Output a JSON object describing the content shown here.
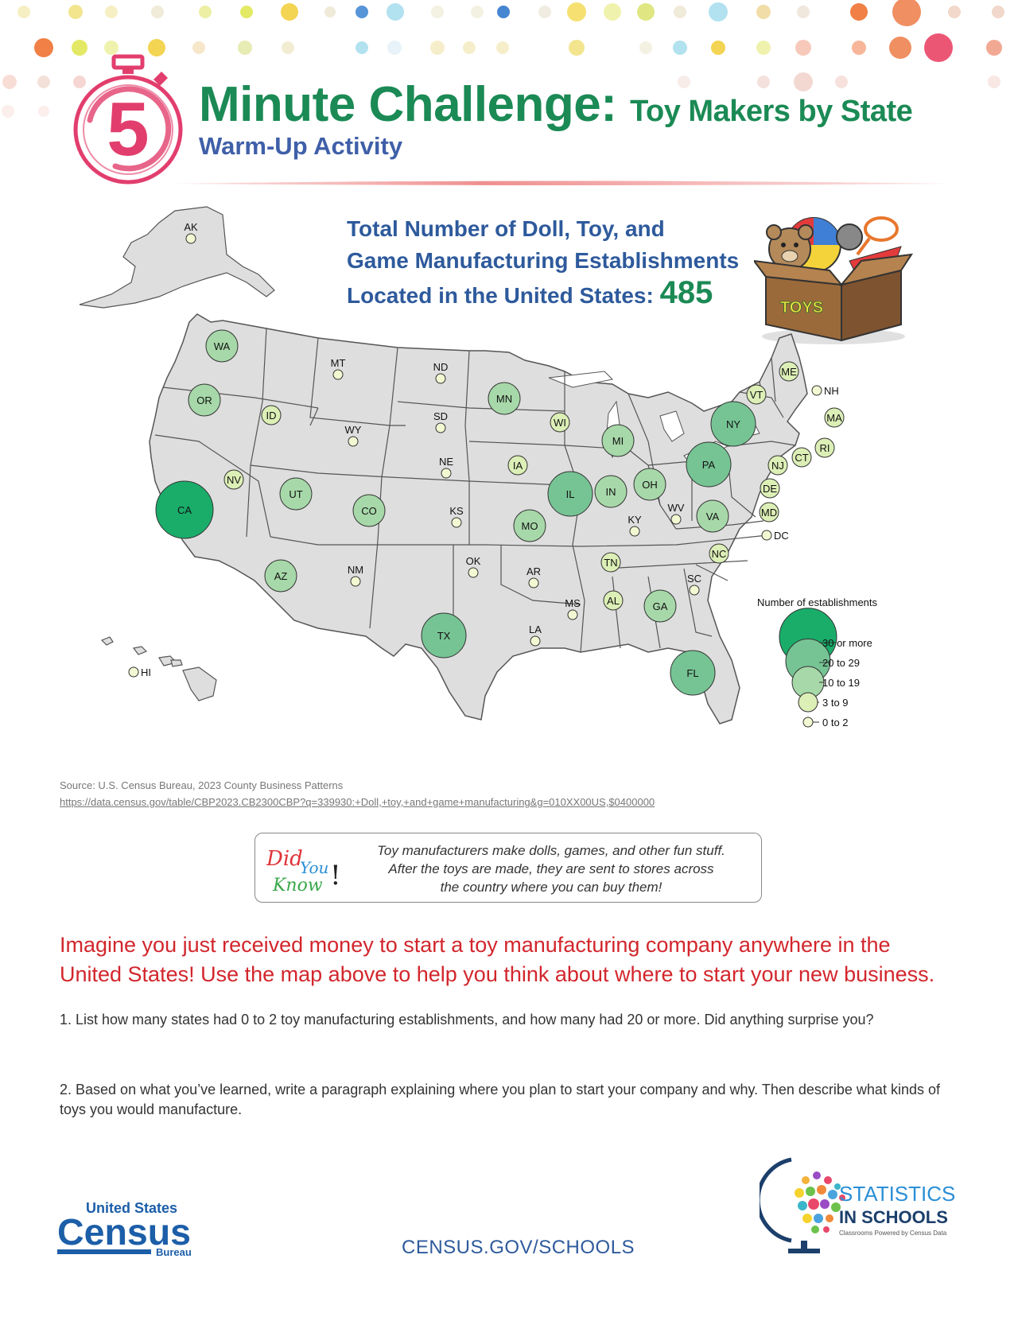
{
  "header": {
    "timer_number": "5",
    "title_main": "Minute Challenge:",
    "title_sub": "Toy Makers by State",
    "subtitle": "Warm-Up Activity"
  },
  "headline": {
    "line1": "Total Number of Doll, Toy, and",
    "line2": "Game Manufacturing Establishments",
    "line3": "Located in the United States:",
    "total": "485"
  },
  "toybox_label": "TOYS",
  "legend": {
    "title": "Number of establishments",
    "items": [
      "30 or more",
      "20 to 29",
      "10 to 19",
      "3 to 9",
      "0 to 2"
    ]
  },
  "colors": {
    "c30": "#1aad6a",
    "c20": "#76c494",
    "c10": "#a7d8a9",
    "c3": "#dcefb6",
    "c0": "#f2f9d2",
    "land": "#dedede",
    "title_green": "#1b8a55",
    "title_blue": "#3f5fa8",
    "red": "#d2262c"
  },
  "states": [
    {
      "id": "AK",
      "cls": "c0"
    },
    {
      "id": "HI",
      "cls": "c0"
    },
    {
      "id": "WA",
      "cls": "c10"
    },
    {
      "id": "OR",
      "cls": "c10"
    },
    {
      "id": "CA",
      "cls": "c30"
    },
    {
      "id": "NV",
      "cls": "c3"
    },
    {
      "id": "ID",
      "cls": "c3"
    },
    {
      "id": "MT",
      "cls": "c0"
    },
    {
      "id": "WY",
      "cls": "c0"
    },
    {
      "id": "UT",
      "cls": "c10"
    },
    {
      "id": "CO",
      "cls": "c10"
    },
    {
      "id": "AZ",
      "cls": "c10"
    },
    {
      "id": "NM",
      "cls": "c0"
    },
    {
      "id": "ND",
      "cls": "c0"
    },
    {
      "id": "SD",
      "cls": "c0"
    },
    {
      "id": "NE",
      "cls": "c0"
    },
    {
      "id": "KS",
      "cls": "c0"
    },
    {
      "id": "OK",
      "cls": "c0"
    },
    {
      "id": "TX",
      "cls": "c20"
    },
    {
      "id": "MN",
      "cls": "c10"
    },
    {
      "id": "IA",
      "cls": "c3"
    },
    {
      "id": "MO",
      "cls": "c10"
    },
    {
      "id": "AR",
      "cls": "c0"
    },
    {
      "id": "LA",
      "cls": "c0"
    },
    {
      "id": "WI",
      "cls": "c3"
    },
    {
      "id": "IL",
      "cls": "c20"
    },
    {
      "id": "MI",
      "cls": "c10"
    },
    {
      "id": "IN",
      "cls": "c10"
    },
    {
      "id": "OH",
      "cls": "c10"
    },
    {
      "id": "KY",
      "cls": "c0"
    },
    {
      "id": "TN",
      "cls": "c3"
    },
    {
      "id": "MS",
      "cls": "c0"
    },
    {
      "id": "AL",
      "cls": "c3"
    },
    {
      "id": "GA",
      "cls": "c10"
    },
    {
      "id": "FL",
      "cls": "c20"
    },
    {
      "id": "SC",
      "cls": "c0"
    },
    {
      "id": "NC",
      "cls": "c3"
    },
    {
      "id": "VA",
      "cls": "c10"
    },
    {
      "id": "WV",
      "cls": "c0"
    },
    {
      "id": "PA",
      "cls": "c20"
    },
    {
      "id": "NY",
      "cls": "c20"
    },
    {
      "id": "ME",
      "cls": "c3"
    },
    {
      "id": "VT",
      "cls": "c3"
    },
    {
      "id": "NH",
      "cls": "c0"
    },
    {
      "id": "MA",
      "cls": "c3"
    },
    {
      "id": "RI",
      "cls": "c3"
    },
    {
      "id": "CT",
      "cls": "c3"
    },
    {
      "id": "NJ",
      "cls": "c3"
    },
    {
      "id": "DE",
      "cls": "c3"
    },
    {
      "id": "MD",
      "cls": "c3"
    },
    {
      "id": "DC",
      "cls": "c0"
    }
  ],
  "source": {
    "line1": "Source: U.S. Census Bureau, 2023 County Business Patterns",
    "line2": "https://data.census.gov/table/CBP2023.CB2300CBP?q=339930:+Doll,+toy,+and+game+manufacturing&g=010XX00US,$0400000"
  },
  "did_you_know": {
    "logo_did": "Did",
    "logo_you": "You",
    "logo_know": "Know",
    "logo_bang": "!",
    "line1": "Toy manufacturers make dolls, games, and other fun stuff.",
    "line2": "After the toys are made, they are sent to stores across",
    "line3": "the country where you can buy them!"
  },
  "prompt": "Imagine you just received money to start a toy manufacturing company anywhere in the United States! Use the map above to help you think about where to start your new business.",
  "questions": [
    "1. List how many states had 0 to 2 toy manufacturing establishments, and how many had 20 or more. Did anything surprise you?",
    "2. Based on what you’ve learned, write a paragraph explaining where you plan to start your company and why. Then describe what kinds of toys you would manufacture."
  ],
  "footer": {
    "census_line1": "United States",
    "census_line2": "Census",
    "census_line3": "Bureau",
    "url": "CENSUS.GOV/SCHOOLS",
    "sis_line1": "STATISTICS",
    "sis_line2": "IN SCHOOLS",
    "sis_tagline": "Classrooms Powered by Census Data"
  }
}
